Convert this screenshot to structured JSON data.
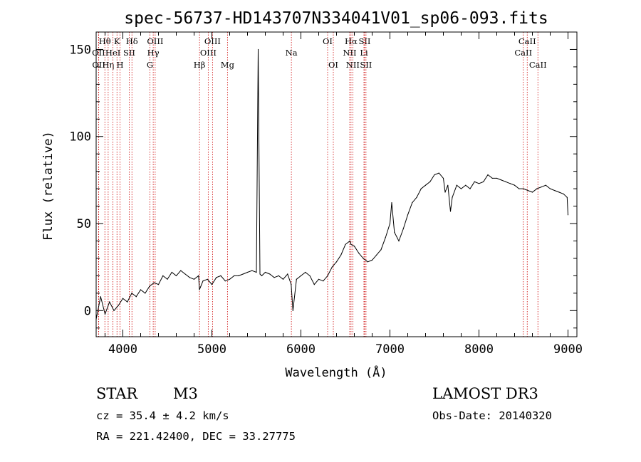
{
  "chart_data": {
    "type": "line",
    "title": "spec-56737-HD143707N334041V01_sp06-093.fits",
    "xlabel": "Wavelength (Å)",
    "ylabel": "Flux (relative)",
    "xlim": [
      3700,
      9100
    ],
    "ylim": [
      -15,
      160
    ],
    "xticks": [
      4000,
      5000,
      6000,
      7000,
      8000,
      9000
    ],
    "yticks": [
      0,
      50,
      100,
      150
    ],
    "grid": false,
    "series": [
      {
        "color": "#000000",
        "x": [
          3700,
          3750,
          3800,
          3850,
          3900,
          3950,
          4000,
          4050,
          4100,
          4150,
          4200,
          4250,
          4300,
          4350,
          4400,
          4450,
          4500,
          4550,
          4600,
          4650,
          4700,
          4750,
          4800,
          4850,
          4860,
          4900,
          4950,
          5000,
          5050,
          5100,
          5150,
          5200,
          5250,
          5300,
          5350,
          5400,
          5450,
          5500,
          5520,
          5540,
          5560,
          5600,
          5650,
          5700,
          5750,
          5800,
          5850,
          5890,
          5910,
          5950,
          6000,
          6050,
          6100,
          6150,
          6200,
          6250,
          6300,
          6350,
          6400,
          6450,
          6500,
          6550,
          6563,
          6600,
          6650,
          6700,
          6750,
          6800,
          6850,
          6900,
          6950,
          7000,
          7020,
          7050,
          7100,
          7150,
          7200,
          7250,
          7300,
          7350,
          7400,
          7450,
          7500,
          7550,
          7600,
          7620,
          7650,
          7680,
          7700,
          7750,
          7800,
          7850,
          7900,
          7950,
          8000,
          8050,
          8100,
          8150,
          8200,
          8250,
          8300,
          8350,
          8400,
          8450,
          8500,
          8550,
          8600,
          8650,
          8700,
          8750,
          8800,
          8850,
          8900,
          8950,
          8990,
          9000
        ],
        "y": [
          -5,
          8,
          -2,
          5,
          0,
          3,
          7,
          5,
          10,
          8,
          12,
          10,
          14,
          16,
          15,
          20,
          18,
          22,
          20,
          23,
          21,
          19,
          18,
          20,
          12,
          17,
          18,
          15,
          19,
          20,
          17,
          18,
          20,
          20,
          21,
          22,
          23,
          22,
          150,
          21,
          20,
          22,
          21,
          19,
          20,
          18,
          21,
          15,
          0,
          18,
          20,
          22,
          20,
          15,
          18,
          17,
          20,
          25,
          28,
          32,
          38,
          40,
          38,
          37,
          33,
          30,
          28,
          29,
          32,
          35,
          42,
          50,
          62,
          45,
          40,
          47,
          55,
          62,
          65,
          70,
          72,
          74,
          78,
          79,
          76,
          68,
          72,
          57,
          65,
          72,
          70,
          72,
          70,
          74,
          73,
          74,
          78,
          76,
          76,
          75,
          74,
          73,
          72,
          70,
          70,
          69,
          68,
          70,
          71,
          72,
          70,
          69,
          68,
          67,
          65,
          55
        ]
      }
    ],
    "line_marks": [
      {
        "label": "Hθ",
        "wavelengths": [
          3798
        ],
        "row": 1
      },
      {
        "label": "OII",
        "wavelengths": [
          3727
        ],
        "row": 2
      },
      {
        "label": "OII",
        "wavelengths": [
          3729
        ],
        "row": 3
      },
      {
        "label": "Hη",
        "wavelengths": [
          3835
        ],
        "row": 3
      },
      {
        "label": "HeI",
        "wavelengths": [
          3889
        ],
        "row": 2
      },
      {
        "label": "K",
        "wavelengths": [
          3934
        ],
        "row": 1
      },
      {
        "label": "H",
        "wavelengths": [
          3968
        ],
        "row": 3
      },
      {
        "label": "SII",
        "wavelengths": [
          4072
        ],
        "row": 2
      },
      {
        "label": "Hδ",
        "wavelengths": [
          4102
        ],
        "row": 1
      },
      {
        "label": "OIII",
        "wavelengths": [
          4363
        ],
        "row": 1
      },
      {
        "label": "Hγ",
        "wavelengths": [
          4341
        ],
        "row": 2
      },
      {
        "label": "G",
        "wavelengths": [
          4304
        ],
        "row": 3
      },
      {
        "label": "Hβ",
        "wavelengths": [
          4861
        ],
        "row": 3
      },
      {
        "label": "OIII",
        "wavelengths": [
          5007
        ],
        "row": 1
      },
      {
        "label": "OIII",
        "wavelengths": [
          4959
        ],
        "row": 2
      },
      {
        "label": "Mg",
        "wavelengths": [
          5175
        ],
        "row": 3
      },
      {
        "label": "Na",
        "wavelengths": [
          5893
        ],
        "row": 2
      },
      {
        "label": "OI",
        "wavelengths": [
          6300
        ],
        "row": 1
      },
      {
        "label": "OI",
        "wavelengths": [
          6364
        ],
        "row": 3
      },
      {
        "label": "Hα",
        "wavelengths": [
          6563
        ],
        "row": 1
      },
      {
        "label": "NII",
        "wavelengths": [
          6548
        ],
        "row": 2
      },
      {
        "label": "NII",
        "wavelengths": [
          6583
        ],
        "row": 3
      },
      {
        "label": "SII",
        "wavelengths": [
          6716
        ],
        "row": 1
      },
      {
        "label": "Li",
        "wavelengths": [
          6708
        ],
        "row": 2
      },
      {
        "label": "SII",
        "wavelengths": [
          6731
        ],
        "row": 3
      },
      {
        "label": "CaII",
        "wavelengths": [
          8542
        ],
        "row": 1
      },
      {
        "label": "CaII",
        "wavelengths": [
          8498
        ],
        "row": 2
      },
      {
        "label": "CaII",
        "wavelengths": [
          8662
        ],
        "row": 3
      }
    ]
  },
  "info": {
    "object_class": "STAR",
    "subclass": "M3",
    "cz_line": "cz = 35.4 ± 4.2 km/s",
    "radec_line": "RA = 221.42400, DEC =  33.27775",
    "survey": "LAMOST DR3",
    "obs_date": "Obs-Date: 20140320"
  },
  "colors": {
    "spectrum": "#000000",
    "line_markers": "#cc0000",
    "background": "#ffffff"
  }
}
